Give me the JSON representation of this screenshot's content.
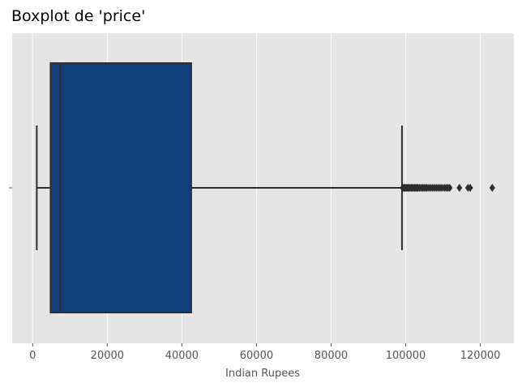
{
  "chart_data": {
    "type": "boxplot",
    "title": "Boxplot de 'price'",
    "xlabel": "Indian Rupees",
    "ylabel": "",
    "xlim": [
      -5500,
      129000
    ],
    "x_ticks": [
      0,
      20000,
      40000,
      60000,
      80000,
      100000,
      120000
    ],
    "x_tick_labels": [
      "0",
      "20000",
      "40000",
      "60000",
      "80000",
      "100000",
      "120000"
    ],
    "y_tick_labels": [
      ""
    ],
    "grid": true,
    "box": {
      "whisker_low": 1100,
      "q1": 4800,
      "median": 7400,
      "q3": 42500,
      "whisker_high": 99000
    },
    "outliers": [
      99200,
      99500,
      99800,
      100000,
      100300,
      100600,
      100900,
      101200,
      101500,
      101800,
      102100,
      102400,
      102700,
      103000,
      103300,
      103700,
      104100,
      104500,
      104900,
      105300,
      105700,
      106200,
      106700,
      107200,
      107700,
      108200,
      108700,
      109200,
      109700,
      110300,
      110800,
      111300,
      111800,
      114400,
      116700,
      117300,
      123200
    ],
    "colors": {
      "box_fill": "#123F7A",
      "line": "#2E2E2E",
      "panel_bg": "#E5E5E5",
      "grid": "#FFFFFF"
    }
  }
}
